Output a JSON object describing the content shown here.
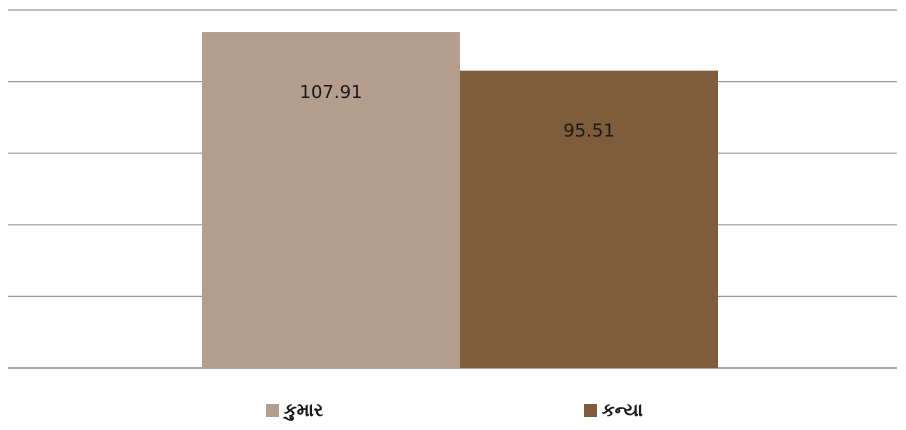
{
  "chart_data": {
    "type": "bar",
    "categories": [
      ""
    ],
    "series": [
      {
        "name": "કુમાર",
        "values": [
          107.91
        ],
        "color": "#b59d8e"
      },
      {
        "name": "કન્યા",
        "values": [
          95.51
        ],
        "color": "#7f5c3b"
      }
    ],
    "data_labels": [
      "107.91",
      "95.51"
    ],
    "ylim": [
      0,
      115
    ],
    "grid": true,
    "legend_position": "bottom"
  }
}
